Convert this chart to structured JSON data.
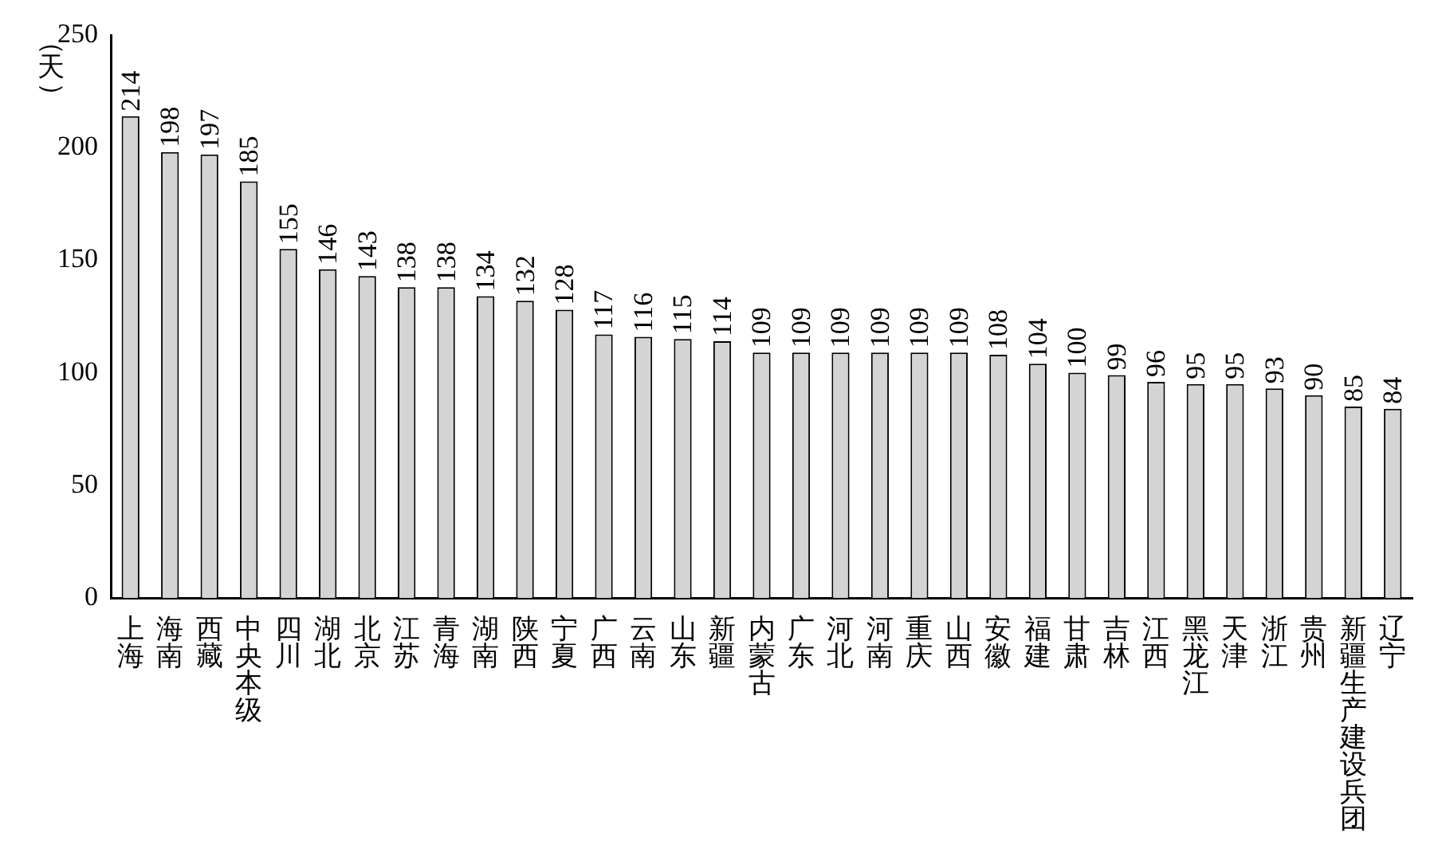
{
  "chart_data": {
    "type": "bar",
    "ylabel": "（天）",
    "categories": [
      "上海",
      "海南",
      "西藏",
      "中央本级",
      "四川",
      "湖北",
      "北京",
      "江苏",
      "青海",
      "湖南",
      "陕西",
      "宁夏",
      "广西",
      "云南",
      "山东",
      "新疆",
      "内蒙古",
      "广东",
      "河北",
      "河南",
      "重庆",
      "山西",
      "安徽",
      "福建",
      "甘肃",
      "吉林",
      "江西",
      "黑龙江",
      "天津",
      "浙江",
      "贵州",
      "新疆生产建设兵团",
      "辽宁"
    ],
    "values": [
      214,
      198,
      197,
      185,
      155,
      146,
      143,
      138,
      138,
      134,
      132,
      128,
      117,
      116,
      115,
      114,
      109,
      109,
      109,
      109,
      109,
      109,
      108,
      104,
      100,
      99,
      96,
      95,
      95,
      93,
      90,
      85,
      84
    ],
    "color": "#d4d4d4",
    "ylim": [
      0,
      250
    ],
    "yticks": [
      0,
      50,
      100,
      150,
      200,
      250
    ],
    "grid": false,
    "legend": false,
    "data_labels": true
  }
}
